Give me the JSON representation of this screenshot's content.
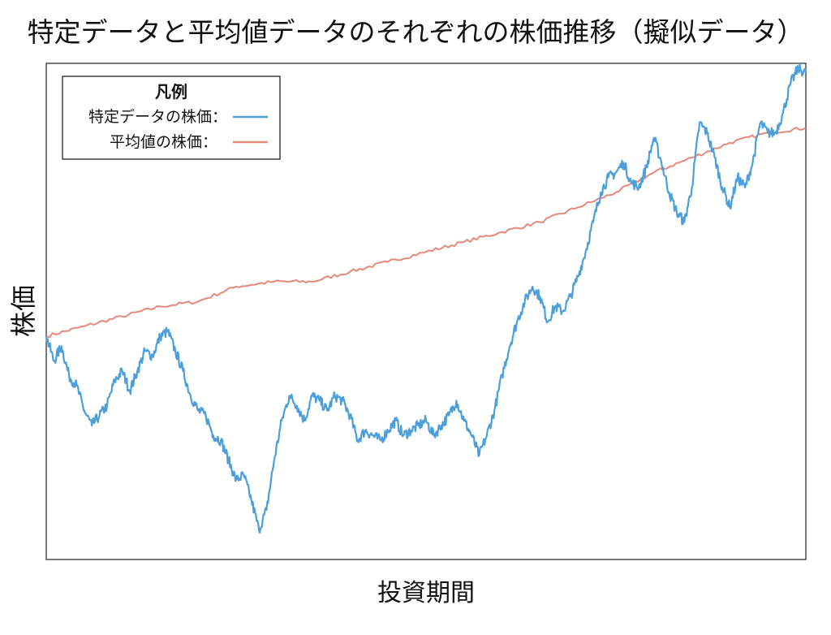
{
  "chart_data": {
    "type": "line",
    "title": "特定データと平均値データのそれぞれの株価推移（擬似データ）",
    "xlabel": "投資期間",
    "ylabel": "株価",
    "xlim": [
      0,
      100
    ],
    "ylim": [
      0,
      100
    ],
    "grid": false,
    "legend": {
      "title": "凡例",
      "position": "top-left",
      "entries": [
        "特定データの株価：",
        "平均値の株価："
      ]
    },
    "series": [
      {
        "name": "特定データの株価",
        "color": "#4C9FDB",
        "x": [
          0,
          1,
          2,
          3,
          4,
          5,
          6,
          7,
          8,
          9,
          10,
          11,
          12,
          13,
          14,
          15,
          16,
          17,
          18,
          19,
          20,
          21,
          22,
          23,
          24,
          25,
          26,
          27,
          28,
          29,
          30,
          31,
          32,
          33,
          34,
          35,
          36,
          37,
          38,
          39,
          40,
          41,
          42,
          43,
          44,
          45,
          46,
          47,
          48,
          49,
          50,
          51,
          52,
          53,
          54,
          55,
          56,
          57,
          58,
          59,
          60,
          61,
          62,
          63,
          64,
          65,
          66,
          67,
          68,
          69,
          70,
          71,
          72,
          73,
          74,
          75,
          76,
          77,
          78,
          79,
          80,
          81,
          82,
          83,
          84,
          85,
          86,
          87,
          88,
          89,
          90,
          91,
          92,
          93,
          94,
          95,
          96,
          97,
          98,
          99,
          100
        ],
        "values": [
          45,
          40,
          43,
          37,
          35,
          30,
          27,
          29,
          31,
          36,
          38,
          34,
          38,
          42,
          41,
          45,
          46,
          42,
          38,
          33,
          30,
          29,
          25,
          24,
          20,
          16,
          17,
          12,
          6,
          10,
          20,
          28,
          33,
          31,
          28,
          33,
          32,
          30,
          33,
          32,
          29,
          24,
          26,
          25,
          24,
          26,
          28,
          25,
          26,
          27,
          28,
          25,
          27,
          29,
          32,
          28,
          25,
          21,
          25,
          30,
          37,
          43,
          48,
          52,
          55,
          53,
          48,
          51,
          50,
          53,
          57,
          62,
          68,
          74,
          77,
          78,
          80,
          76,
          75,
          79,
          85,
          80,
          74,
          70,
          68,
          75,
          88,
          86,
          81,
          75,
          71,
          77,
          75,
          80,
          88,
          86,
          86,
          90,
          96,
          99,
          98
        ]
      },
      {
        "name": "平均値の株価",
        "color": "#E5897A",
        "x": [
          0,
          5,
          10,
          15,
          20,
          25,
          30,
          35,
          40,
          45,
          50,
          55,
          60,
          65,
          70,
          75,
          80,
          85,
          90,
          95,
          100
        ],
        "values": [
          45,
          47,
          49,
          51,
          52,
          55,
          56,
          56,
          58,
          60,
          62,
          64,
          66,
          68,
          71,
          74,
          78,
          81,
          84,
          86,
          87
        ]
      }
    ]
  }
}
